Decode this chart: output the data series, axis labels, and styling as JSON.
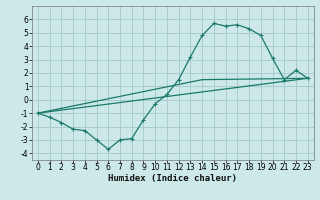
{
  "xlabel": "Humidex (Indice chaleur)",
  "bg_color": "#cce8e8",
  "grid_color": "#aacccc",
  "line_color": "#1a7a6a",
  "xlim": [
    -0.5,
    23.5
  ],
  "ylim": [
    -4.5,
    7
  ],
  "xticks": [
    0,
    1,
    2,
    3,
    4,
    5,
    6,
    7,
    8,
    9,
    10,
    11,
    12,
    13,
    14,
    15,
    16,
    17,
    18,
    19,
    20,
    21,
    22,
    23
  ],
  "yticks": [
    -4,
    -3,
    -2,
    -1,
    0,
    1,
    2,
    3,
    4,
    5,
    6
  ],
  "line1_x": [
    0,
    1,
    2,
    3,
    4,
    5,
    6,
    7,
    8,
    9,
    10,
    11,
    12,
    13,
    14,
    15,
    16,
    17,
    18,
    19,
    20,
    21,
    22,
    23
  ],
  "line1_y": [
    -1,
    -1.3,
    -1.7,
    -2.2,
    -2.3,
    -3.0,
    -3.7,
    -3.0,
    -2.9,
    -1.5,
    -0.3,
    0.4,
    1.5,
    3.2,
    4.8,
    5.7,
    5.5,
    5.6,
    5.3,
    4.8,
    3.1,
    1.5,
    2.2,
    1.6
  ],
  "line2_x": [
    0,
    23
  ],
  "line2_y": [
    -1,
    1.6
  ],
  "line3_x": [
    0,
    14,
    23
  ],
  "line3_y": [
    -1,
    1.5,
    1.6
  ],
  "tick_fontsize": 5.5,
  "xlabel_fontsize": 6.5
}
